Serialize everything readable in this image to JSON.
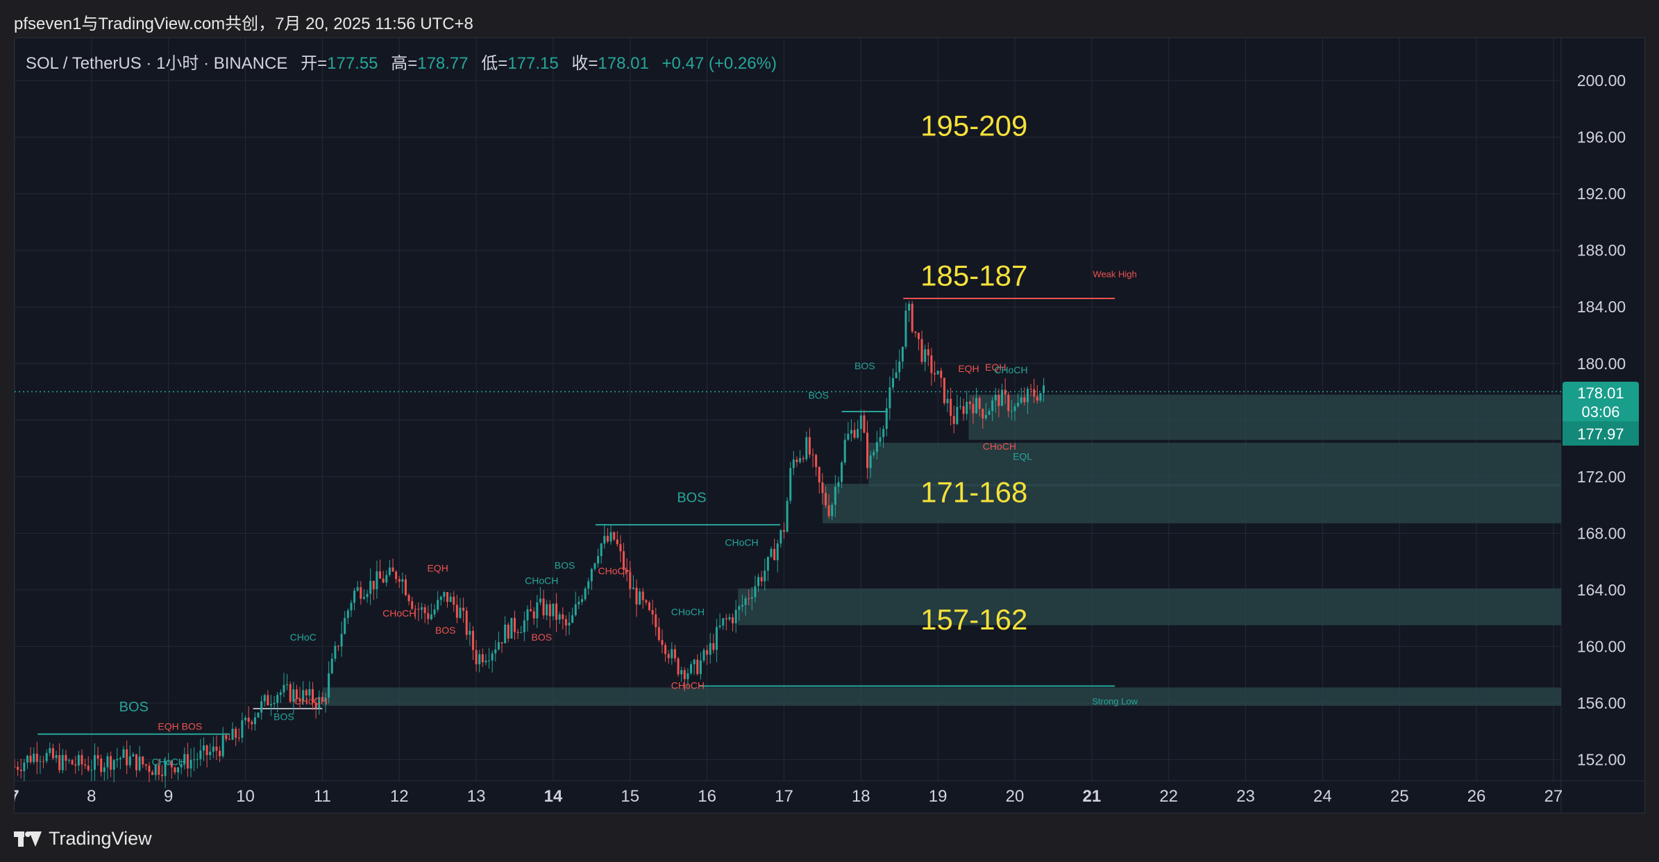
{
  "caption": "pfseven1与TradingView.com共创，7月 20, 2025 11:56 UTC+8",
  "legend": {
    "symbol": "SOL / TetherUS · 1小时 · BINANCE",
    "open_label": "开=",
    "open": "177.55",
    "high_label": "高=",
    "high": "178.77",
    "low_label": "低=",
    "low": "177.15",
    "close_label": "收=",
    "close": "178.01",
    "change": "+0.47 (+0.26%)"
  },
  "price_badge": {
    "price": "178.01",
    "countdown": "03:06",
    "price2": "177.97"
  },
  "footer": {
    "brand": "TradingView",
    "logo_icon": "tradingview-logo-icon"
  },
  "colors": {
    "up": "#26a69a",
    "down": "#ef5350",
    "zone": "#2b4a4c",
    "text_yellow": "#f5e13a",
    "grid": "#242a36",
    "axis_text": "#d1d4dc",
    "background": "#131722"
  },
  "chart_data": {
    "type": "candlestick",
    "symbol": "SOL / TetherUS",
    "interval": "1小时",
    "exchange": "BINANCE",
    "ylim": [
      150.5,
      203
    ],
    "y_ticks": [
      200,
      196,
      192,
      188,
      184,
      180,
      176,
      172,
      168,
      164,
      160,
      156,
      152
    ],
    "y_tick_labels": [
      "200.00",
      "196.00",
      "192.00",
      "188.00",
      "184.00",
      "180.00",
      "176.00",
      "172.00",
      "168.00",
      "164.00",
      "160.00",
      "156.00",
      "152.00"
    ],
    "x_range": [
      7,
      27.1
    ],
    "x_ticks": [
      7,
      8,
      9,
      10,
      11,
      12,
      13,
      14,
      15,
      16,
      17,
      18,
      19,
      20,
      21,
      22,
      23,
      24,
      25,
      26,
      27
    ],
    "x_tick_labels": [
      "7",
      "8",
      "9",
      "10",
      "11",
      "12",
      "13",
      "14",
      "15",
      "16",
      "17",
      "18",
      "19",
      "20",
      "21",
      "22",
      "23",
      "24",
      "25",
      "26",
      "27"
    ],
    "bold_x_ticks": [
      "7",
      "14",
      "21"
    ],
    "grid": true,
    "last_price": 178.01,
    "price_path": [
      [
        7.0,
        151.5
      ],
      [
        7.3,
        152.5
      ],
      [
        7.6,
        151.8
      ],
      [
        8.0,
        151.6
      ],
      [
        8.4,
        152.2
      ],
      [
        8.8,
        151.4
      ],
      [
        9.2,
        151.8
      ],
      [
        9.6,
        152.6
      ],
      [
        9.9,
        153.8
      ],
      [
        10.1,
        155.2
      ],
      [
        10.4,
        156.8
      ],
      [
        10.7,
        156.6
      ],
      [
        11.0,
        156.0
      ],
      [
        11.2,
        160.2
      ],
      [
        11.4,
        163.8
      ],
      [
        11.7,
        164.6
      ],
      [
        12.0,
        165.2
      ],
      [
        12.2,
        162.8
      ],
      [
        12.4,
        162.2
      ],
      [
        12.6,
        163.6
      ],
      [
        12.8,
        162.4
      ],
      [
        13.0,
        159.2
      ],
      [
        13.2,
        159.8
      ],
      [
        13.4,
        161.2
      ],
      [
        13.6,
        161.6
      ],
      [
        13.8,
        162.8
      ],
      [
        14.0,
        162.4
      ],
      [
        14.2,
        161.2
      ],
      [
        14.4,
        164.2
      ],
      [
        14.6,
        167.2
      ],
      [
        14.8,
        167.6
      ],
      [
        15.0,
        164.2
      ],
      [
        15.2,
        162.6
      ],
      [
        15.4,
        160.8
      ],
      [
        15.6,
        158.6
      ],
      [
        15.8,
        158.2
      ],
      [
        16.0,
        159.4
      ],
      [
        16.2,
        161.6
      ],
      [
        16.4,
        162.4
      ],
      [
        16.6,
        164.2
      ],
      [
        16.8,
        165.8
      ],
      [
        17.0,
        168.4
      ],
      [
        17.1,
        173.0
      ],
      [
        17.3,
        174.2
      ],
      [
        17.5,
        170.6
      ],
      [
        17.6,
        169.6
      ],
      [
        17.8,
        174.6
      ],
      [
        18.0,
        176.0
      ],
      [
        18.1,
        172.6
      ],
      [
        18.3,
        176.2
      ],
      [
        18.5,
        180.2
      ],
      [
        18.6,
        184.0
      ],
      [
        18.8,
        180.6
      ],
      [
        19.0,
        179.0
      ],
      [
        19.2,
        176.0
      ],
      [
        19.4,
        177.4
      ],
      [
        19.6,
        176.6
      ],
      [
        19.8,
        177.6
      ],
      [
        20.0,
        176.8
      ],
      [
        20.2,
        177.8
      ],
      [
        20.4,
        178.01
      ]
    ],
    "lines": [
      {
        "y": 184.6,
        "x": [
          18.55,
          21.3
        ],
        "color": "#ef5350"
      },
      {
        "y": 168.6,
        "x": [
          14.55,
          16.95
        ],
        "color": "#26a69a"
      },
      {
        "y": 176.6,
        "x": [
          17.75,
          18.35
        ],
        "color": "#26a69a"
      },
      {
        "y": 157.2,
        "x": [
          15.9,
          21.3
        ],
        "color": "#26a69a"
      },
      {
        "y": 153.8,
        "x": [
          7.3,
          9.8
        ],
        "color": "#26a69a"
      },
      {
        "y": 155.6,
        "x": [
          10.1,
          11.0
        ],
        "color": "#b2b5be"
      }
    ],
    "zones": [
      {
        "x0": 19.4,
        "y0": 174.6,
        "y1": 177.8
      },
      {
        "x0": 18.1,
        "y0": 171.3,
        "y1": 174.4
      },
      {
        "x0": 17.5,
        "y0": 168.7,
        "y1": 171.5
      },
      {
        "x0": 16.4,
        "y0": 161.5,
        "y1": 164.1
      },
      {
        "x0": 11.0,
        "y0": 155.8,
        "y1": 157.1
      }
    ],
    "zone_labels": [
      {
        "text": "195-209",
        "x": 19.47,
        "y": 196.1
      },
      {
        "text": "185-187",
        "x": 19.47,
        "y": 185.5
      },
      {
        "text": "171-168",
        "x": 19.47,
        "y": 170.2
      },
      {
        "text": "157-162",
        "x": 19.47,
        "y": 161.2
      }
    ],
    "annotations": [
      {
        "text": "BOS",
        "x": 8.55,
        "y": 155.4,
        "color": "#26a69a",
        "size": 20
      },
      {
        "text": "BOS",
        "x": 15.8,
        "y": 170.2,
        "color": "#26a69a",
        "size": 20
      },
      {
        "text": "BOS",
        "x": 10.5,
        "y": 154.8,
        "color": "#26a69a",
        "size": 14
      },
      {
        "text": "EQH BOS",
        "x": 9.15,
        "y": 154.1,
        "color": "#ef5350",
        "size": 14
      },
      {
        "text": "CHoCH",
        "x": 9.0,
        "y": 151.6,
        "color": "#26a69a",
        "size": 14
      },
      {
        "text": "CHoC",
        "x": 10.75,
        "y": 160.4,
        "color": "#26a69a",
        "size": 14
      },
      {
        "text": "CHoCH",
        "x": 10.85,
        "y": 155.9,
        "color": "#ef5350",
        "size": 14
      },
      {
        "text": "CHoCH",
        "x": 12.0,
        "y": 162.1,
        "color": "#ef5350",
        "size": 14
      },
      {
        "text": "EQH",
        "x": 12.5,
        "y": 165.3,
        "color": "#ef5350",
        "size": 14
      },
      {
        "text": "BOS",
        "x": 12.6,
        "y": 160.9,
        "color": "#ef5350",
        "size": 14
      },
      {
        "text": "CHoCH",
        "x": 13.85,
        "y": 164.4,
        "color": "#26a69a",
        "size": 14
      },
      {
        "text": "BOS",
        "x": 14.15,
        "y": 165.5,
        "color": "#26a69a",
        "size": 14
      },
      {
        "text": "BOS",
        "x": 13.85,
        "y": 160.4,
        "color": "#ef5350",
        "size": 14
      },
      {
        "text": "CHoCH",
        "x": 14.8,
        "y": 165.1,
        "color": "#ef5350",
        "size": 14
      },
      {
        "text": "CHoCH",
        "x": 15.75,
        "y": 162.2,
        "color": "#26a69a",
        "size": 14
      },
      {
        "text": "CHoCH",
        "x": 15.75,
        "y": 157.0,
        "color": "#ef5350",
        "size": 14
      },
      {
        "text": "CHoCH",
        "x": 16.45,
        "y": 167.1,
        "color": "#26a69a",
        "size": 14
      },
      {
        "text": "BOS",
        "x": 17.45,
        "y": 177.5,
        "color": "#26a69a",
        "size": 14
      },
      {
        "text": "BOS",
        "x": 18.05,
        "y": 179.6,
        "color": "#26a69a",
        "size": 14
      },
      {
        "text": "EQH",
        "x": 19.4,
        "y": 179.4,
        "color": "#ef5350",
        "size": 14
      },
      {
        "text": "EQH",
        "x": 19.75,
        "y": 179.5,
        "color": "#ef5350",
        "size": 14
      },
      {
        "text": "CHoCH",
        "x": 19.95,
        "y": 179.3,
        "color": "#26a69a",
        "size": 14
      },
      {
        "text": "CHoCH",
        "x": 19.8,
        "y": 173.9,
        "color": "#ef5350",
        "size": 14
      },
      {
        "text": "EQL",
        "x": 20.1,
        "y": 173.2,
        "color": "#26a69a",
        "size": 14
      },
      {
        "text": "Weak High",
        "x": 21.3,
        "y": 186.1,
        "color": "#ef5350",
        "size": 13
      },
      {
        "text": "Strong Low",
        "x": 21.3,
        "y": 155.9,
        "color": "#26a69a",
        "size": 13
      }
    ]
  }
}
